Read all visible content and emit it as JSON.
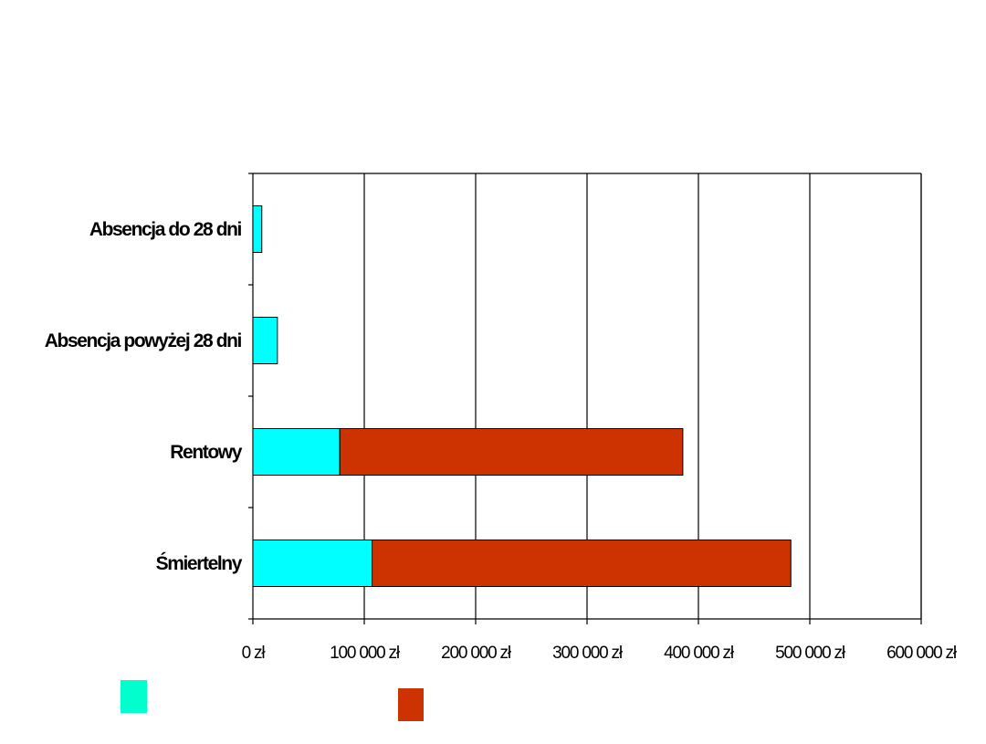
{
  "chart_data": {
    "type": "bar",
    "orientation": "horizontal",
    "stacked": true,
    "categories": [
      "Absencja do 28 dni",
      "Absencja powyżej 28 dni",
      "Rentowy",
      "Śmiertelny"
    ],
    "series": [
      {
        "color": "#00FFFF",
        "values": [
          8000,
          22000,
          78000,
          107000
        ]
      },
      {
        "color": "#CC3300",
        "values": [
          0,
          0,
          308000,
          376000
        ]
      }
    ],
    "xlim": [
      0,
      600000
    ],
    "x_ticks": [
      0,
      100000,
      200000,
      300000,
      400000,
      500000,
      600000
    ],
    "x_tick_labels": [
      "0 zł",
      "100 000 zł",
      "200 000 zł",
      "300 000 zł",
      "400 000 zł",
      "500 000 zł",
      "600 000 zł"
    ],
    "grid": "vertical",
    "legend": {
      "placement": "bottom",
      "swatch_colors": [
        "#00FFCC",
        "#CC3300"
      ]
    },
    "title": "",
    "xlabel": "",
    "ylabel": ""
  }
}
